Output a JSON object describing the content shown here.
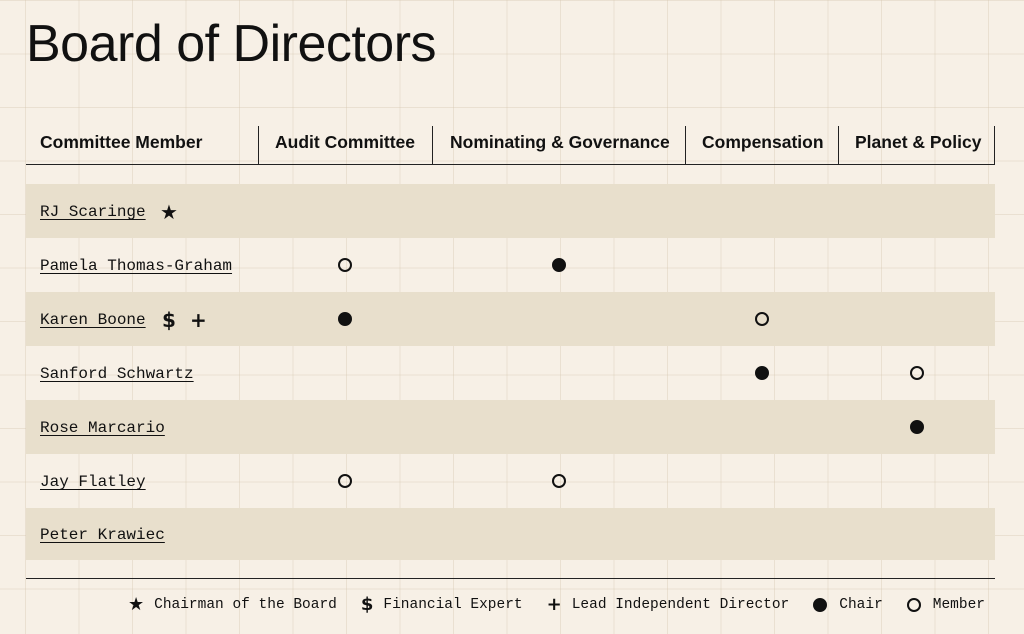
{
  "page": {
    "title": "Board of Directors"
  },
  "table": {
    "columns": [
      "Committee Member",
      "Audit Committee",
      "Nominating & Governance",
      "Compensation",
      "Planet & Policy"
    ],
    "rows": [
      {
        "name": "RJ Scaringe",
        "symbols": [
          "★"
        ],
        "audit": "",
        "nominating": "",
        "compensation": "",
        "planet": ""
      },
      {
        "name": "Pamela Thomas-Graham",
        "symbols": [],
        "audit": "member",
        "nominating": "chair",
        "compensation": "",
        "planet": ""
      },
      {
        "name": "Karen Boone",
        "symbols": [
          "$",
          "+"
        ],
        "audit": "chair",
        "nominating": "",
        "compensation": "member",
        "planet": ""
      },
      {
        "name": "Sanford Schwartz",
        "symbols": [],
        "audit": "",
        "nominating": "",
        "compensation": "chair",
        "planet": "member"
      },
      {
        "name": "Rose Marcario",
        "symbols": [],
        "audit": "",
        "nominating": "",
        "compensation": "",
        "planet": "chair"
      },
      {
        "name": "Jay Flatley",
        "symbols": [],
        "audit": "member",
        "nominating": "member",
        "compensation": "",
        "planet": ""
      },
      {
        "name": "Peter Krawiec",
        "symbols": [],
        "audit": "",
        "nominating": "",
        "compensation": "",
        "planet": ""
      }
    ]
  },
  "legend": {
    "chairman_symbol": "★",
    "chairman_label": "Chairman of the Board",
    "financial_symbol": "$",
    "financial_label": "Financial Expert",
    "lead_symbol": "+",
    "lead_label": "Lead Independent Director",
    "chair_label": "Chair",
    "member_label": "Member"
  },
  "colors": {
    "background": "#f7f0e6",
    "row_shade": "#e8dfcc",
    "ink": "#111111"
  }
}
